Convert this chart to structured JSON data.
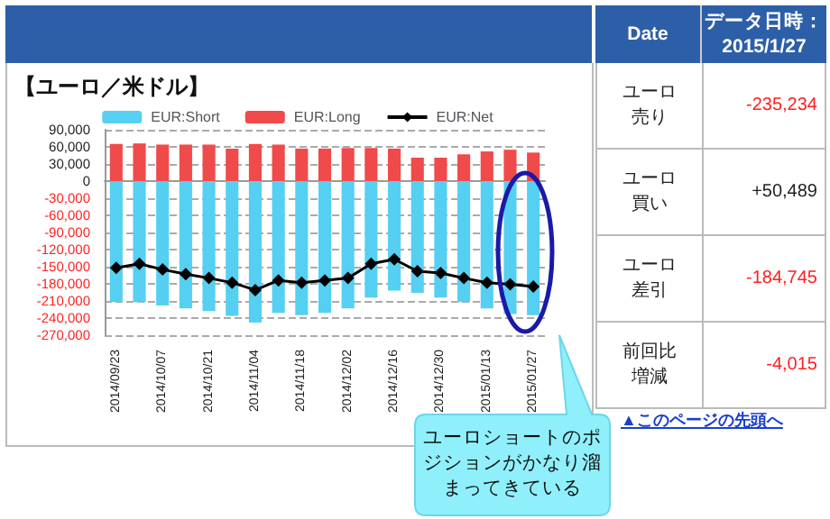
{
  "chart_data": [
    {
      "type": "bar",
      "title": "【ユーロ／米ドル】",
      "stacked": true,
      "legend": "top",
      "grid": "y",
      "marker": "diamond",
      "categories": [
        "2014/09/23",
        null,
        "2014/10/07",
        null,
        "2014/10/21",
        null,
        "2014/11/04",
        null,
        "2014/11/18",
        null,
        "2014/12/02",
        null,
        "2014/12/16",
        null,
        "2014/12/30",
        null,
        "2015/01/13",
        null,
        "2015/01/27"
      ],
      "ylim": [
        -270000,
        90000
      ],
      "yticks": [
        {
          "value": -270000,
          "label": "-270,000"
        },
        {
          "value": -240000,
          "label": "-240,000"
        },
        {
          "value": -210000,
          "label": "-210,000"
        },
        {
          "value": -180000,
          "label": "-180,000"
        },
        {
          "value": -150000,
          "label": "-150,000"
        },
        {
          "value": -120000,
          "label": "-120,000"
        },
        {
          "value": -90000,
          "label": "-90,000"
        },
        {
          "value": -60000,
          "label": "-60,000"
        },
        {
          "value": -30000,
          "label": "-30,000"
        },
        0,
        {
          "value": 30000,
          "label": "30,000"
        },
        {
          "value": 60000,
          "label": "60,000"
        },
        {
          "value": 90000,
          "label": "90,000"
        }
      ],
      "series": [
        {
          "name": "EUR:Short",
          "color": "#55d0f2",
          "values": [
            -212000,
            -212000,
            -218000,
            -223000,
            -228000,
            -236000,
            -248000,
            -231000,
            -235000,
            -231000,
            -223000,
            -204000,
            -192000,
            -196000,
            -204000,
            -212000,
            -223000,
            -233000,
            -235000
          ]
        },
        {
          "name": "EUR:Long",
          "color": "#f04a4a",
          "values": [
            65000,
            66000,
            64000,
            64000,
            64000,
            57000,
            65000,
            64000,
            57000,
            57000,
            58000,
            58000,
            57000,
            41000,
            41000,
            47000,
            52000,
            55000,
            50000
          ]
        },
        {
          "name": "EUR:Net",
          "type": "line",
          "color": "#000000",
          "values": [
            -152000,
            -145000,
            -155000,
            -163000,
            -170000,
            -178000,
            -191000,
            -174000,
            -178000,
            -174000,
            -170000,
            -145000,
            -137000,
            -158000,
            -161000,
            -170000,
            -178000,
            -181000,
            -185000
          ]
        }
      ],
      "annotations": [
        "ユーロショートのポジションがかなり溜まってきている"
      ]
    },
    {
      "type": "other",
      "categories": [
        "ユーロ売り",
        "ユーロ買い",
        "ユーロ差引",
        "前回比増減"
      ],
      "value_labels": [
        "-235,234",
        "+50,489",
        "-184,745",
        "-4,015"
      ],
      "colors": [
        "#ff2020",
        "#222222",
        "#ff2020",
        "#ff2020"
      ],
      "annotations": [
        "Date",
        "データ日時：2015/1/27",
        "▲このページの先頭へ"
      ]
    }
  ]
}
